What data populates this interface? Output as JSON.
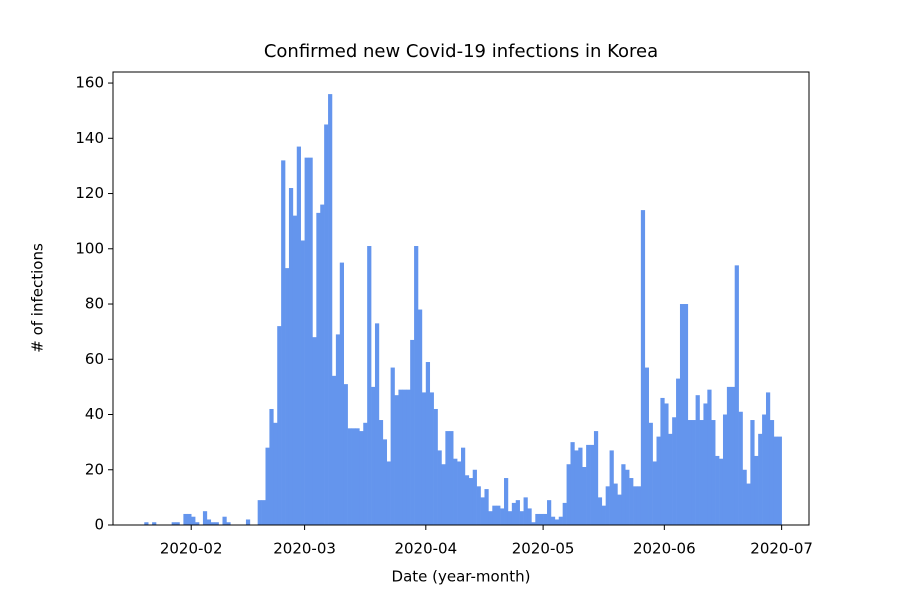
{
  "chart_data": {
    "type": "bar",
    "title": "Confirmed new Covid-19 infections in Korea",
    "xlabel": "Date (year-month)",
    "ylabel": "# of infections",
    "color": "#6495ed",
    "x": [
      "2020-01-20",
      "2020-01-21",
      "2020-01-22",
      "2020-01-23",
      "2020-01-24",
      "2020-01-25",
      "2020-01-26",
      "2020-01-27",
      "2020-01-28",
      "2020-01-29",
      "2020-01-30",
      "2020-01-31",
      "2020-02-01",
      "2020-02-02",
      "2020-02-03",
      "2020-02-04",
      "2020-02-05",
      "2020-02-06",
      "2020-02-07",
      "2020-02-08",
      "2020-02-09",
      "2020-02-10",
      "2020-02-11",
      "2020-02-12",
      "2020-02-13",
      "2020-02-14",
      "2020-02-15",
      "2020-02-16",
      "2020-02-17",
      "2020-02-18",
      "2020-02-19",
      "2020-02-20",
      "2020-02-21",
      "2020-02-22",
      "2020-02-23",
      "2020-02-24",
      "2020-02-25",
      "2020-02-26",
      "2020-02-27",
      "2020-02-28",
      "2020-02-29",
      "2020-03-01",
      "2020-03-02",
      "2020-03-03",
      "2020-03-04",
      "2020-03-05",
      "2020-03-06",
      "2020-03-07",
      "2020-03-08",
      "2020-03-09",
      "2020-03-10",
      "2020-03-11",
      "2020-03-12",
      "2020-03-13",
      "2020-03-14",
      "2020-03-15",
      "2020-03-16",
      "2020-03-17",
      "2020-03-18",
      "2020-03-19",
      "2020-03-20",
      "2020-03-21",
      "2020-03-22",
      "2020-03-23",
      "2020-03-24",
      "2020-03-25",
      "2020-03-26",
      "2020-03-27",
      "2020-03-28",
      "2020-03-29",
      "2020-03-30",
      "2020-03-31",
      "2020-04-01",
      "2020-04-02",
      "2020-04-03",
      "2020-04-04",
      "2020-04-05",
      "2020-04-06",
      "2020-04-07",
      "2020-04-08",
      "2020-04-09",
      "2020-04-10",
      "2020-04-11",
      "2020-04-12",
      "2020-04-13",
      "2020-04-14",
      "2020-04-15",
      "2020-04-16",
      "2020-04-17",
      "2020-04-18",
      "2020-04-19",
      "2020-04-20",
      "2020-04-21",
      "2020-04-22",
      "2020-04-23",
      "2020-04-24",
      "2020-04-25",
      "2020-04-26",
      "2020-04-27",
      "2020-04-28",
      "2020-04-29",
      "2020-04-30",
      "2020-05-01",
      "2020-05-02",
      "2020-05-03",
      "2020-05-04",
      "2020-05-05",
      "2020-05-06",
      "2020-05-07",
      "2020-05-08",
      "2020-05-09",
      "2020-05-10",
      "2020-05-11",
      "2020-05-12",
      "2020-05-13",
      "2020-05-14",
      "2020-05-15",
      "2020-05-16",
      "2020-05-17",
      "2020-05-18",
      "2020-05-19",
      "2020-05-20",
      "2020-05-21",
      "2020-05-22",
      "2020-05-23",
      "2020-05-24",
      "2020-05-25",
      "2020-05-26",
      "2020-05-27",
      "2020-05-28",
      "2020-05-29",
      "2020-05-30",
      "2020-05-31",
      "2020-06-01",
      "2020-06-02",
      "2020-06-03",
      "2020-06-04",
      "2020-06-05",
      "2020-06-06",
      "2020-06-07",
      "2020-06-08",
      "2020-06-09",
      "2020-06-10",
      "2020-06-11",
      "2020-06-12",
      "2020-06-13",
      "2020-06-14",
      "2020-06-15",
      "2020-06-16",
      "2020-06-17",
      "2020-06-18",
      "2020-06-19",
      "2020-06-20",
      "2020-06-21",
      "2020-06-22",
      "2020-06-23",
      "2020-06-24",
      "2020-06-25",
      "2020-06-26",
      "2020-06-27",
      "2020-06-28",
      "2020-06-29",
      "2020-06-30"
    ],
    "values": [
      1,
      0,
      1,
      0,
      0,
      0,
      0,
      1,
      1,
      0,
      4,
      4,
      3,
      1,
      0,
      5,
      2,
      1,
      1,
      0,
      3,
      1,
      0,
      0,
      0,
      0,
      2,
      0,
      0,
      9,
      9,
      28,
      42,
      37,
      72,
      132,
      93,
      122,
      112,
      137,
      103,
      133,
      133,
      68,
      113,
      116,
      145,
      156,
      54,
      69,
      95,
      51,
      35,
      35,
      35,
      34,
      37,
      101,
      50,
      73,
      38,
      31,
      23,
      57,
      47,
      49,
      49,
      49,
      67,
      101,
      78,
      48,
      59,
      48,
      42,
      27,
      22,
      34,
      34,
      24,
      23,
      28,
      18,
      17,
      20,
      14,
      10,
      13,
      5,
      7,
      7,
      6,
      17,
      5,
      8,
      9,
      5,
      10,
      6,
      1,
      4,
      4,
      4,
      9,
      3,
      2,
      3,
      8,
      22,
      30,
      27,
      28,
      21,
      29,
      29,
      34,
      10,
      7,
      14,
      27,
      15,
      11,
      22,
      20,
      17,
      14,
      14,
      114,
      57,
      37,
      23,
      32,
      46,
      44,
      33,
      39,
      53,
      80,
      80,
      38,
      38,
      47,
      38,
      44,
      49,
      38,
      25,
      24,
      40,
      50,
      50,
      94,
      41,
      20,
      15,
      38,
      25,
      33,
      40,
      48,
      38,
      32,
      32
    ],
    "xlim": [
      "2020-01-12",
      "2020-07-08"
    ],
    "xticks": [
      "2020-02",
      "2020-03",
      "2020-04",
      "2020-05",
      "2020-06",
      "2020-07"
    ],
    "ylim": [
      0,
      164
    ],
    "yticks": [
      0,
      20,
      40,
      60,
      80,
      100,
      120,
      140,
      160
    ]
  }
}
